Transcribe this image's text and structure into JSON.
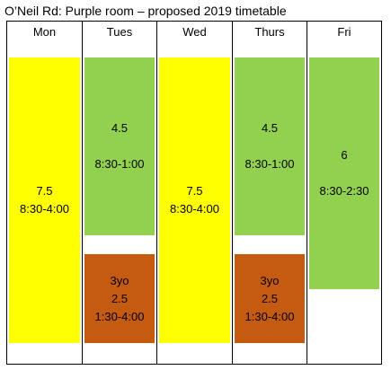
{
  "title": "O’Neil Rd: Purple room – proposed 2019 timetable",
  "colors": {
    "full_day": "#ffff00",
    "morning": "#92d050",
    "afternoon": "#c55a11",
    "gridline": "#000000"
  },
  "columns": [
    {
      "day": "Mon",
      "blocks": [
        {
          "kind": "full_day",
          "hours": "7.5",
          "time": "8:30-4:00"
        }
      ]
    },
    {
      "day": "Tues",
      "blocks": [
        {
          "kind": "morning",
          "hours": "4.5",
          "time": "8:30-1:00"
        },
        {
          "kind": "afternoon",
          "group": "3yo",
          "hours": "2.5",
          "time": "1:30-4:00"
        }
      ]
    },
    {
      "day": "Wed",
      "blocks": [
        {
          "kind": "full_day",
          "hours": "7.5",
          "time": "8:30-4:00"
        }
      ]
    },
    {
      "day": "Thurs",
      "blocks": [
        {
          "kind": "morning",
          "hours": "4.5",
          "time": "8:30-1:00"
        },
        {
          "kind": "afternoon",
          "group": "3yo",
          "hours": "2.5",
          "time": "1:30-4:00"
        }
      ]
    },
    {
      "day": "Fri",
      "blocks": [
        {
          "kind": "morning",
          "hours": "6",
          "time": "8:30-2:30"
        }
      ]
    }
  ]
}
